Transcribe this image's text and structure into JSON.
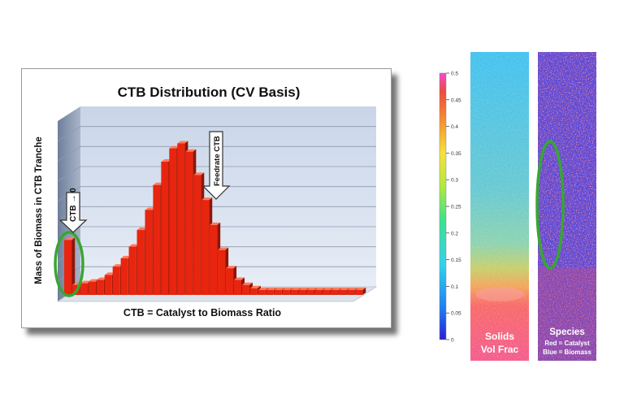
{
  "chart_data": {
    "type": "bar",
    "title": "CTB Distribution (CV Basis)",
    "xlabel": "CTB = Catalyst to Biomass Ratio",
    "ylabel": "Mass of Biomass in CTB Tranche",
    "values": [
      0.33,
      0.06,
      0.07,
      0.08,
      0.09,
      0.12,
      0.17,
      0.22,
      0.29,
      0.39,
      0.51,
      0.66,
      0.8,
      0.88,
      0.91,
      0.86,
      0.72,
      0.57,
      0.42,
      0.27,
      0.16,
      0.09,
      0.06,
      0.04,
      0.03,
      0.03,
      0.03,
      0.03,
      0.03,
      0.03,
      0.03,
      0.03,
      0.03,
      0.03,
      0.03,
      0.03,
      0.03
    ],
    "ylim": [
      0,
      1
    ],
    "bar_color": "#e8250f",
    "annotations": [
      {
        "text": "CTB → 0",
        "bar_index": 0
      },
      {
        "text": "Feedrate CTB",
        "bar_index": 16
      }
    ],
    "highlight_color": "#38a631"
  },
  "colorbar": {
    "ticks": [
      "0.5",
      "0.45",
      "0.4",
      "0.35",
      "0.3",
      "0.25",
      "0.2",
      "0.15",
      "0.1",
      "0.05",
      "0"
    ],
    "tick_values": [
      0.5,
      0.45,
      0.4,
      0.35,
      0.3,
      0.25,
      0.2,
      0.15,
      0.1,
      0.05,
      0
    ]
  },
  "panels": {
    "left_label_line1": "Solids",
    "left_label_line2": "Vol Frac",
    "right_label_title": "Species",
    "right_label_line2": "Red = Catalyst",
    "right_label_line3": "Blue = Biomass"
  }
}
